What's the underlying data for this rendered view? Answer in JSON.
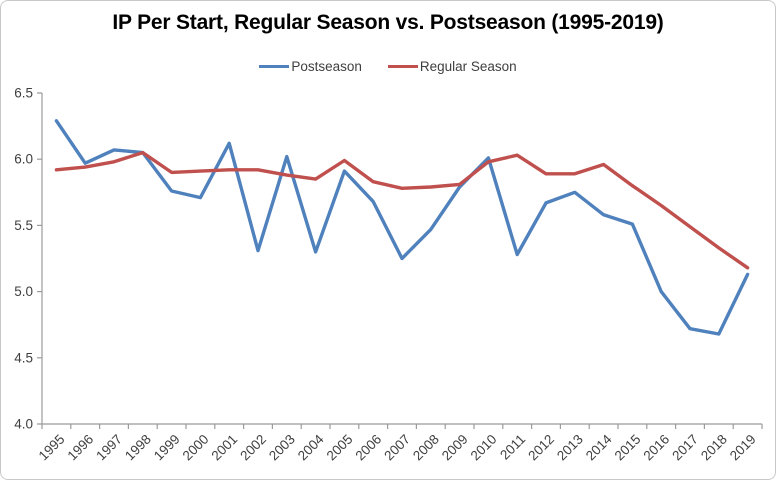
{
  "chart_data": {
    "type": "line",
    "title": "IP Per Start, Regular Season vs. Postseason (1995-2019)",
    "categories": [
      "1995",
      "1996",
      "1997",
      "1998",
      "1999",
      "2000",
      "2001",
      "2002",
      "2003",
      "2004",
      "2005",
      "2006",
      "2007",
      "2008",
      "2009",
      "2010",
      "2011",
      "2012",
      "2013",
      "2014",
      "2015",
      "2016",
      "2017",
      "2018",
      "2019"
    ],
    "series": [
      {
        "name": "Postseason",
        "color": "#4F81BD",
        "values": [
          6.29,
          5.97,
          6.07,
          6.05,
          5.76,
          5.71,
          6.12,
          5.31,
          6.02,
          5.3,
          5.91,
          5.68,
          5.25,
          5.47,
          5.79,
          6.01,
          5.28,
          5.67,
          5.75,
          5.58,
          5.51,
          5.0,
          4.72,
          4.68,
          5.13
        ]
      },
      {
        "name": "Regular Season",
        "color": "#C0504D",
        "values": [
          5.92,
          5.94,
          5.98,
          6.05,
          5.9,
          5.91,
          5.92,
          5.92,
          5.88,
          5.85,
          5.99,
          5.83,
          5.78,
          5.79,
          5.81,
          5.98,
          6.03,
          5.89,
          5.89,
          5.96,
          5.8,
          5.65,
          5.49,
          5.33,
          5.18
        ]
      }
    ],
    "xlabel": "",
    "ylabel": "",
    "ylim": [
      4.0,
      6.5
    ],
    "ytick_step": 0.5,
    "ytick_labels": [
      "4.0",
      "4.5",
      "5.0",
      "5.5",
      "6.0",
      "6.5"
    ],
    "grid": false,
    "legend_position": "top-center",
    "axis_color": "#9b9b9b",
    "label_color": "#3f3f3f"
  }
}
